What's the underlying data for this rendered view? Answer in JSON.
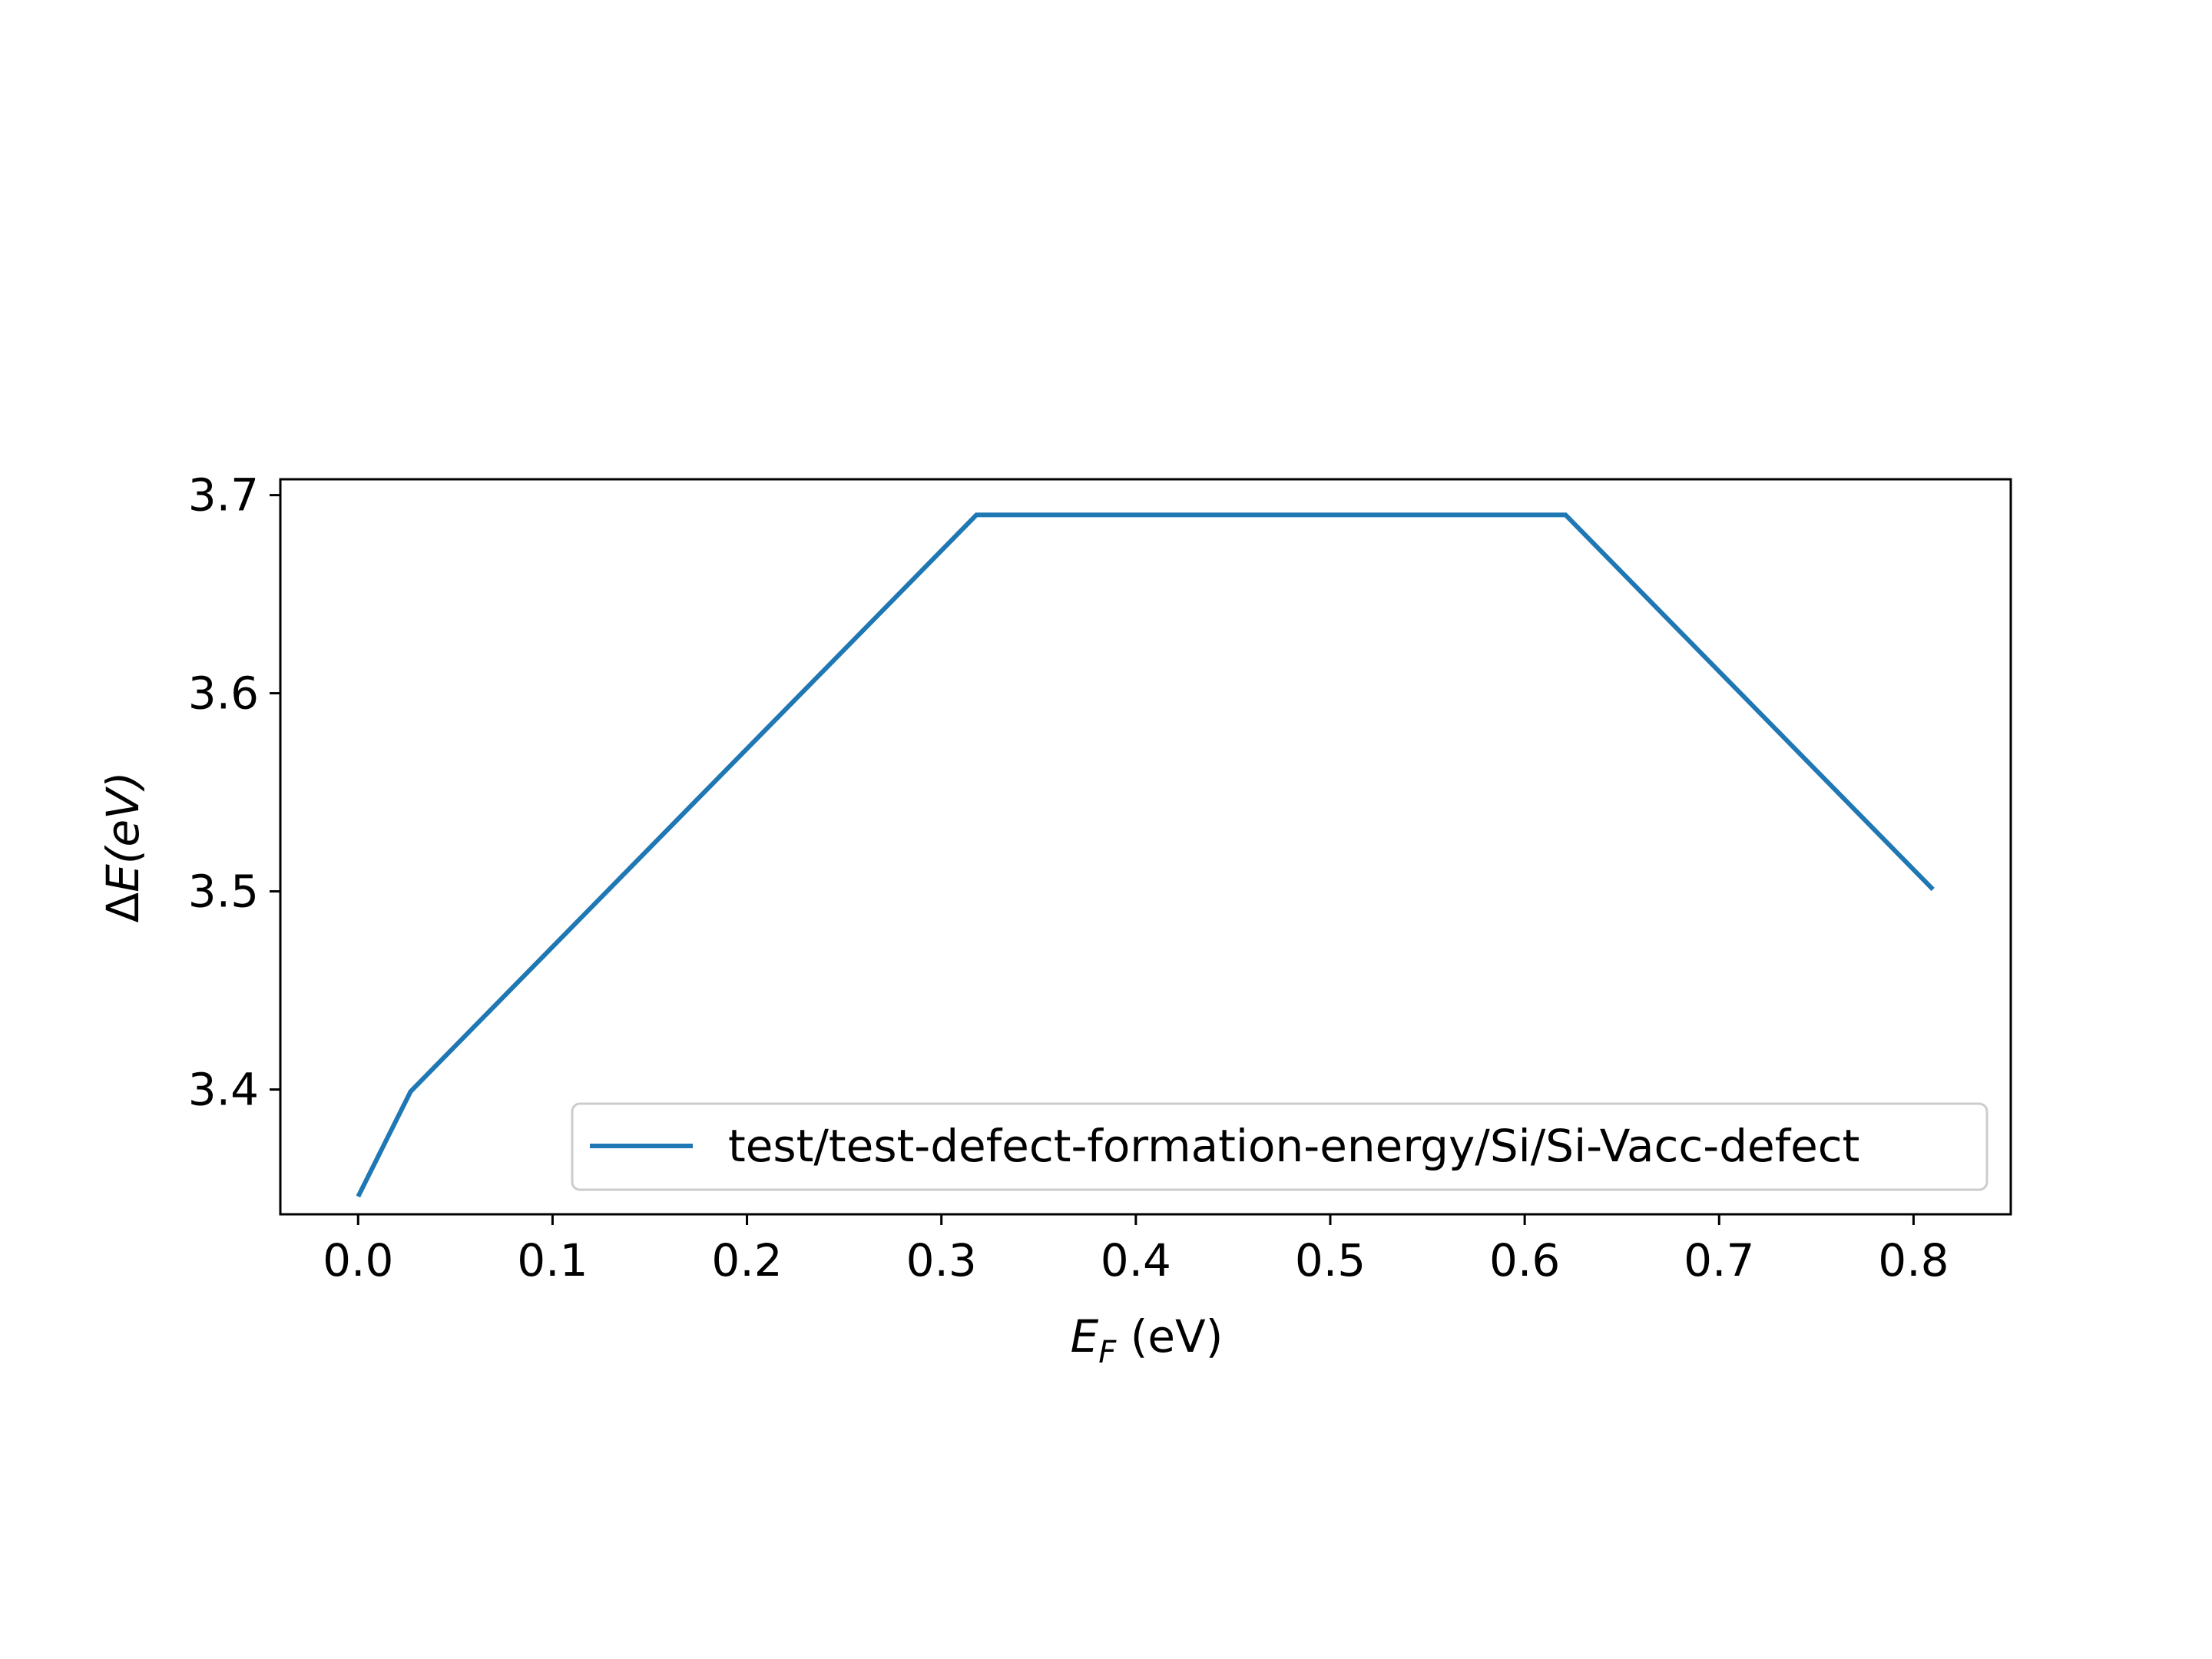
{
  "chart_data": {
    "type": "line",
    "xlabel_main": "E",
    "xlabel_sub": "F",
    "xlabel_unit": " (eV)",
    "ylabel_prefix": "Δ",
    "ylabel_main": "E",
    "ylabel_unit": "(eV)",
    "xlim": [
      -0.04,
      0.85
    ],
    "ylim": [
      3.337,
      3.708
    ],
    "xticks": [
      0.0,
      0.1,
      0.2,
      0.3,
      0.4,
      0.5,
      0.6,
      0.7,
      0.8
    ],
    "xtick_labels": [
      "0.0",
      "0.1",
      "0.2",
      "0.3",
      "0.4",
      "0.5",
      "0.6",
      "0.7",
      "0.8"
    ],
    "yticks": [
      3.4,
      3.5,
      3.6,
      3.7
    ],
    "ytick_labels": [
      "3.4",
      "3.5",
      "3.6",
      "3.7"
    ],
    "grid": false,
    "legend_position": "lower-right",
    "series": [
      {
        "name": "test/test-defect-formation-energy/Si/Si-Vacc-defect",
        "color": "#1f77b4",
        "x": [
          0.0,
          0.027,
          0.318,
          0.621,
          0.81
        ],
        "y": [
          3.346,
          3.399,
          3.69,
          3.69,
          3.501
        ]
      }
    ]
  }
}
